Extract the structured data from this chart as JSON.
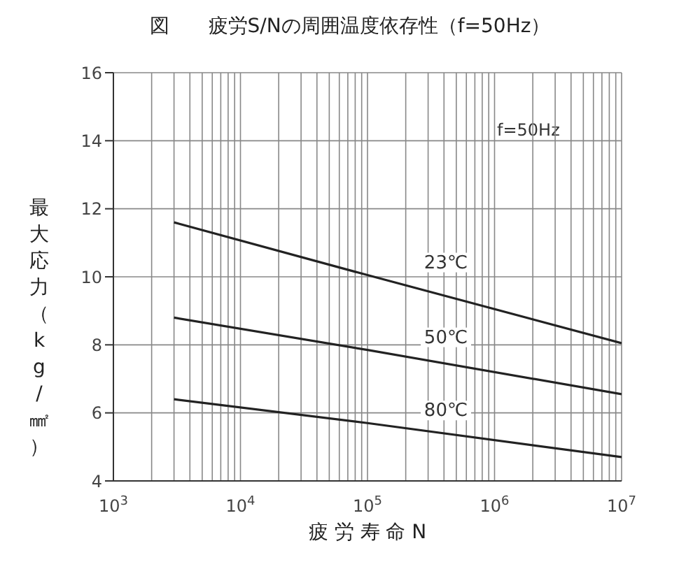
{
  "chart_data": {
    "type": "line",
    "title": "図　　疲労S/Nの周囲温度依存性（f=50Hz）",
    "xlabel": "疲 労 寿 命 N",
    "ylabel": "最大応力（kg/㎟）",
    "annotations": [
      "f=50Hz"
    ],
    "log": "x",
    "grid": true,
    "marker": "none",
    "line_style": "solid",
    "xlim": [
      1000,
      10000000
    ],
    "ylim": [
      4,
      16
    ],
    "yticks": [
      4,
      6,
      8,
      10,
      12,
      14,
      16
    ],
    "xticks": [
      {
        "value": 1000,
        "label": "10$^{3}$"
      },
      {
        "value": 2000,
        "label": null
      },
      {
        "value": 3000,
        "label": null
      },
      {
        "value": 4000,
        "label": null
      },
      {
        "value": 5000,
        "label": null
      },
      {
        "value": 6000,
        "label": null
      },
      {
        "value": 7000,
        "label": null
      },
      {
        "value": 8000,
        "label": null
      },
      {
        "value": 9000,
        "label": null
      },
      {
        "value": 10000,
        "label": "10$^{4}$"
      },
      {
        "value": 20000,
        "label": null
      },
      {
        "value": 30000,
        "label": null
      },
      {
        "value": 40000,
        "label": null
      },
      {
        "value": 50000,
        "label": null
      },
      {
        "value": 60000,
        "label": null
      },
      {
        "value": 70000,
        "label": null
      },
      {
        "value": 80000,
        "label": null
      },
      {
        "value": 90000,
        "label": null
      },
      {
        "value": 100000,
        "label": "10$^{5}$"
      },
      {
        "value": 200000,
        "label": null
      },
      {
        "value": 300000,
        "label": null
      },
      {
        "value": 400000,
        "label": null
      },
      {
        "value": 500000,
        "label": null
      },
      {
        "value": 600000,
        "label": null
      },
      {
        "value": 700000,
        "label": null
      },
      {
        "value": 800000,
        "label": null
      },
      {
        "value": 900000,
        "label": null
      },
      {
        "value": 1000000,
        "label": "10$^{6}$"
      },
      {
        "value": 2000000,
        "label": null
      },
      {
        "value": 3000000,
        "label": null
      },
      {
        "value": 4000000,
        "label": null
      },
      {
        "value": 5000000,
        "label": null
      },
      {
        "value": 6000000,
        "label": null
      },
      {
        "value": 7000000,
        "label": null
      },
      {
        "value": 8000000,
        "label": null
      },
      {
        "value": 9000000,
        "label": null
      },
      {
        "value": 10000000,
        "label": "10$^{7}$"
      }
    ],
    "series": [
      {
        "name": "23℃",
        "color": "#222222",
        "x": [
          3000,
          100000,
          10000000
        ],
        "values": [
          11.6,
          10.05,
          8.05
        ]
      },
      {
        "name": "50℃",
        "color": "#222222",
        "x": [
          3000,
          100000,
          10000000
        ],
        "values": [
          8.8,
          7.85,
          6.55
        ]
      },
      {
        "name": "80℃",
        "color": "#222222",
        "x": [
          3000,
          100000,
          10000000
        ],
        "values": [
          6.4,
          5.7,
          4.7
        ]
      }
    ]
  }
}
